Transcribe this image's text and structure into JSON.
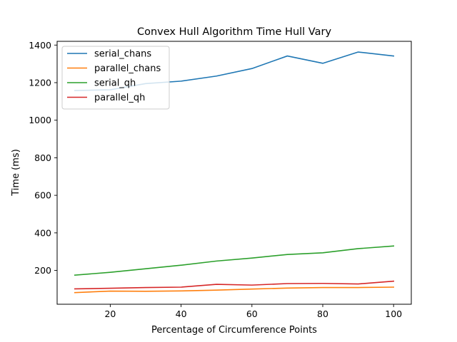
{
  "chart_data": {
    "type": "line",
    "title": "Convex Hull Algorithm Time Hull Vary",
    "xlabel": "Percentage of Circumference Points",
    "ylabel": "Time (ms)",
    "xlim": [
      5,
      105
    ],
    "ylim": [
      20,
      1420
    ],
    "xticks": [
      20,
      40,
      60,
      80,
      100
    ],
    "yticks": [
      200,
      400,
      600,
      800,
      1000,
      1200,
      1400
    ],
    "grid": false,
    "legend_position": "top-left",
    "x": [
      10,
      20,
      30,
      40,
      50,
      60,
      70,
      80,
      90,
      100
    ],
    "series": [
      {
        "name": "serial_chans",
        "color": "#1f77b4",
        "values": [
          1158,
          1162,
          1195,
          1208,
          1235,
          1275,
          1342,
          1303,
          1363,
          1342
        ]
      },
      {
        "name": "parallel_chans",
        "color": "#ff7f0e",
        "values": [
          82,
          90,
          89,
          91,
          95,
          101,
          106,
          109,
          109,
          111
        ]
      },
      {
        "name": "serial_qh",
        "color": "#2ca02c",
        "values": [
          175,
          190,
          209,
          228,
          250,
          266,
          285,
          294,
          316,
          330
        ]
      },
      {
        "name": "parallel_qh",
        "color": "#d62728",
        "values": [
          102,
          105,
          109,
          111,
          126,
          122,
          130,
          131,
          128,
          143
        ]
      }
    ]
  }
}
